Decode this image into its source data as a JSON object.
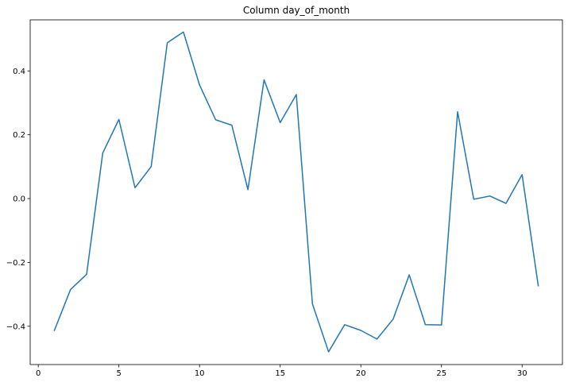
{
  "chart_data": {
    "type": "line",
    "title": "Column day_of_month",
    "xlabel": "",
    "ylabel": "",
    "xlim": [
      -0.5,
      32.5
    ],
    "ylim": [
      -0.52,
      0.56
    ],
    "grid": false,
    "legend": "none",
    "x_ticks": [
      0,
      5,
      10,
      15,
      20,
      25,
      30
    ],
    "x_tick_labels": [
      "0",
      "5",
      "10",
      "15",
      "20",
      "25",
      "30"
    ],
    "y_ticks": [
      -0.4,
      -0.2,
      0.0,
      0.2,
      0.4
    ],
    "y_tick_labels": [
      "−0.4",
      "−0.2",
      "0.0",
      "0.2",
      "0.4"
    ],
    "series": [
      {
        "color": "#1f77b4",
        "x": [
          1,
          2,
          3,
          4,
          5,
          6,
          7,
          8,
          9,
          10,
          11,
          12,
          13,
          14,
          15,
          16,
          17,
          18,
          19,
          20,
          21,
          22,
          23,
          24,
          25,
          26,
          27,
          28,
          29,
          30,
          31
        ],
        "y": [
          -0.413,
          -0.285,
          -0.237,
          0.143,
          0.248,
          0.034,
          0.1,
          0.488,
          0.522,
          0.356,
          0.247,
          0.23,
          0.028,
          0.372,
          0.238,
          0.326,
          -0.33,
          -0.48,
          -0.395,
          -0.413,
          -0.44,
          -0.378,
          -0.239,
          -0.395,
          -0.396,
          0.272,
          -0.002,
          0.008,
          -0.015,
          0.075,
          -0.273
        ]
      }
    ]
  }
}
